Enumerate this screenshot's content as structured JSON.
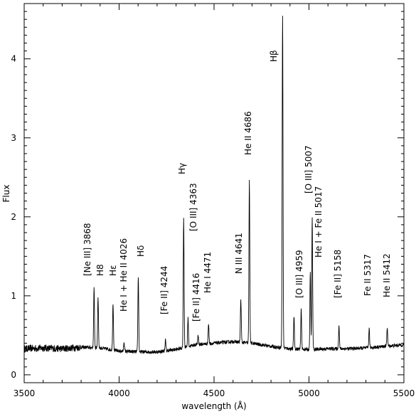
{
  "chart_data": {
    "type": "line",
    "title": "",
    "xlabel": "wavelength (Å)",
    "ylabel": "Flux",
    "xlim": [
      3500,
      5500
    ],
    "ylim": [
      -0.1,
      4.7
    ],
    "xticks": [
      3500,
      4000,
      4500,
      5000,
      5500
    ],
    "yticks": [
      0,
      1,
      2,
      3,
      4
    ],
    "grid": false,
    "legend": "none",
    "continuum": [
      [
        3500,
        0.33
      ],
      [
        3600,
        0.34
      ],
      [
        3700,
        0.33
      ],
      [
        3800,
        0.35
      ],
      [
        3900,
        0.34
      ],
      [
        4000,
        0.3
      ],
      [
        4100,
        0.29
      ],
      [
        4200,
        0.29
      ],
      [
        4300,
        0.32
      ],
      [
        4400,
        0.38
      ],
      [
        4500,
        0.4
      ],
      [
        4600,
        0.42
      ],
      [
        4700,
        0.4
      ],
      [
        4800,
        0.36
      ],
      [
        4900,
        0.33
      ],
      [
        5000,
        0.32
      ],
      [
        5100,
        0.33
      ],
      [
        5200,
        0.33
      ],
      [
        5300,
        0.34
      ],
      [
        5400,
        0.36
      ],
      [
        5500,
        0.38
      ]
    ],
    "peaks": [
      {
        "x": 3868,
        "y": 1.09
      },
      {
        "x": 3889,
        "y": 0.99
      },
      {
        "x": 3968,
        "y": 0.91
      },
      {
        "x": 4026,
        "y": 0.42
      },
      {
        "x": 4101,
        "y": 1.24
      },
      {
        "x": 4244,
        "y": 0.44
      },
      {
        "x": 4340,
        "y": 1.97
      },
      {
        "x": 4363,
        "y": 0.72
      },
      {
        "x": 4416,
        "y": 0.5
      },
      {
        "x": 4471,
        "y": 0.64
      },
      {
        "x": 4641,
        "y": 0.96
      },
      {
        "x": 4686,
        "y": 2.45
      },
      {
        "x": 4861,
        "y": 4.56
      },
      {
        "x": 4921,
        "y": 0.74
      },
      {
        "x": 4959,
        "y": 0.82
      },
      {
        "x": 5007,
        "y": 1.29
      },
      {
        "x": 5017,
        "y": 1.99
      },
      {
        "x": 5158,
        "y": 0.62
      },
      {
        "x": 5317,
        "y": 0.58
      },
      {
        "x": 5412,
        "y": 0.6
      }
    ],
    "annotations": [
      {
        "text": "[Ne III] 3868",
        "x": 3868
      },
      {
        "text": "H8",
        "x": 3889
      },
      {
        "text": "Hε",
        "x": 3968
      },
      {
        "text": "He I + He II 4026",
        "x": 4026
      },
      {
        "text": "Hδ",
        "x": 4101
      },
      {
        "text": "[Fe II] 4244",
        "x": 4244
      },
      {
        "text": "Hγ",
        "x": 4340
      },
      {
        "text": "[O III] 4363",
        "x": 4363
      },
      {
        "text": "[Fe II] 4416",
        "x": 4416
      },
      {
        "text": "He I 4471",
        "x": 4471
      },
      {
        "text": "N III 4641",
        "x": 4641
      },
      {
        "text": "He II 4686",
        "x": 4686
      },
      {
        "text": "Hβ",
        "x": 4861
      },
      {
        "text": "[O III] 4959",
        "x": 4959
      },
      {
        "text": "[O III] 5007",
        "x": 5007
      },
      {
        "text": "He I + Fe II 5017",
        "x": 5017
      },
      {
        "text": "[Fe II] 5158",
        "x": 5158
      },
      {
        "text": "Fe II 5317",
        "x": 5317
      },
      {
        "text": "He II 5412",
        "x": 5412
      }
    ]
  }
}
